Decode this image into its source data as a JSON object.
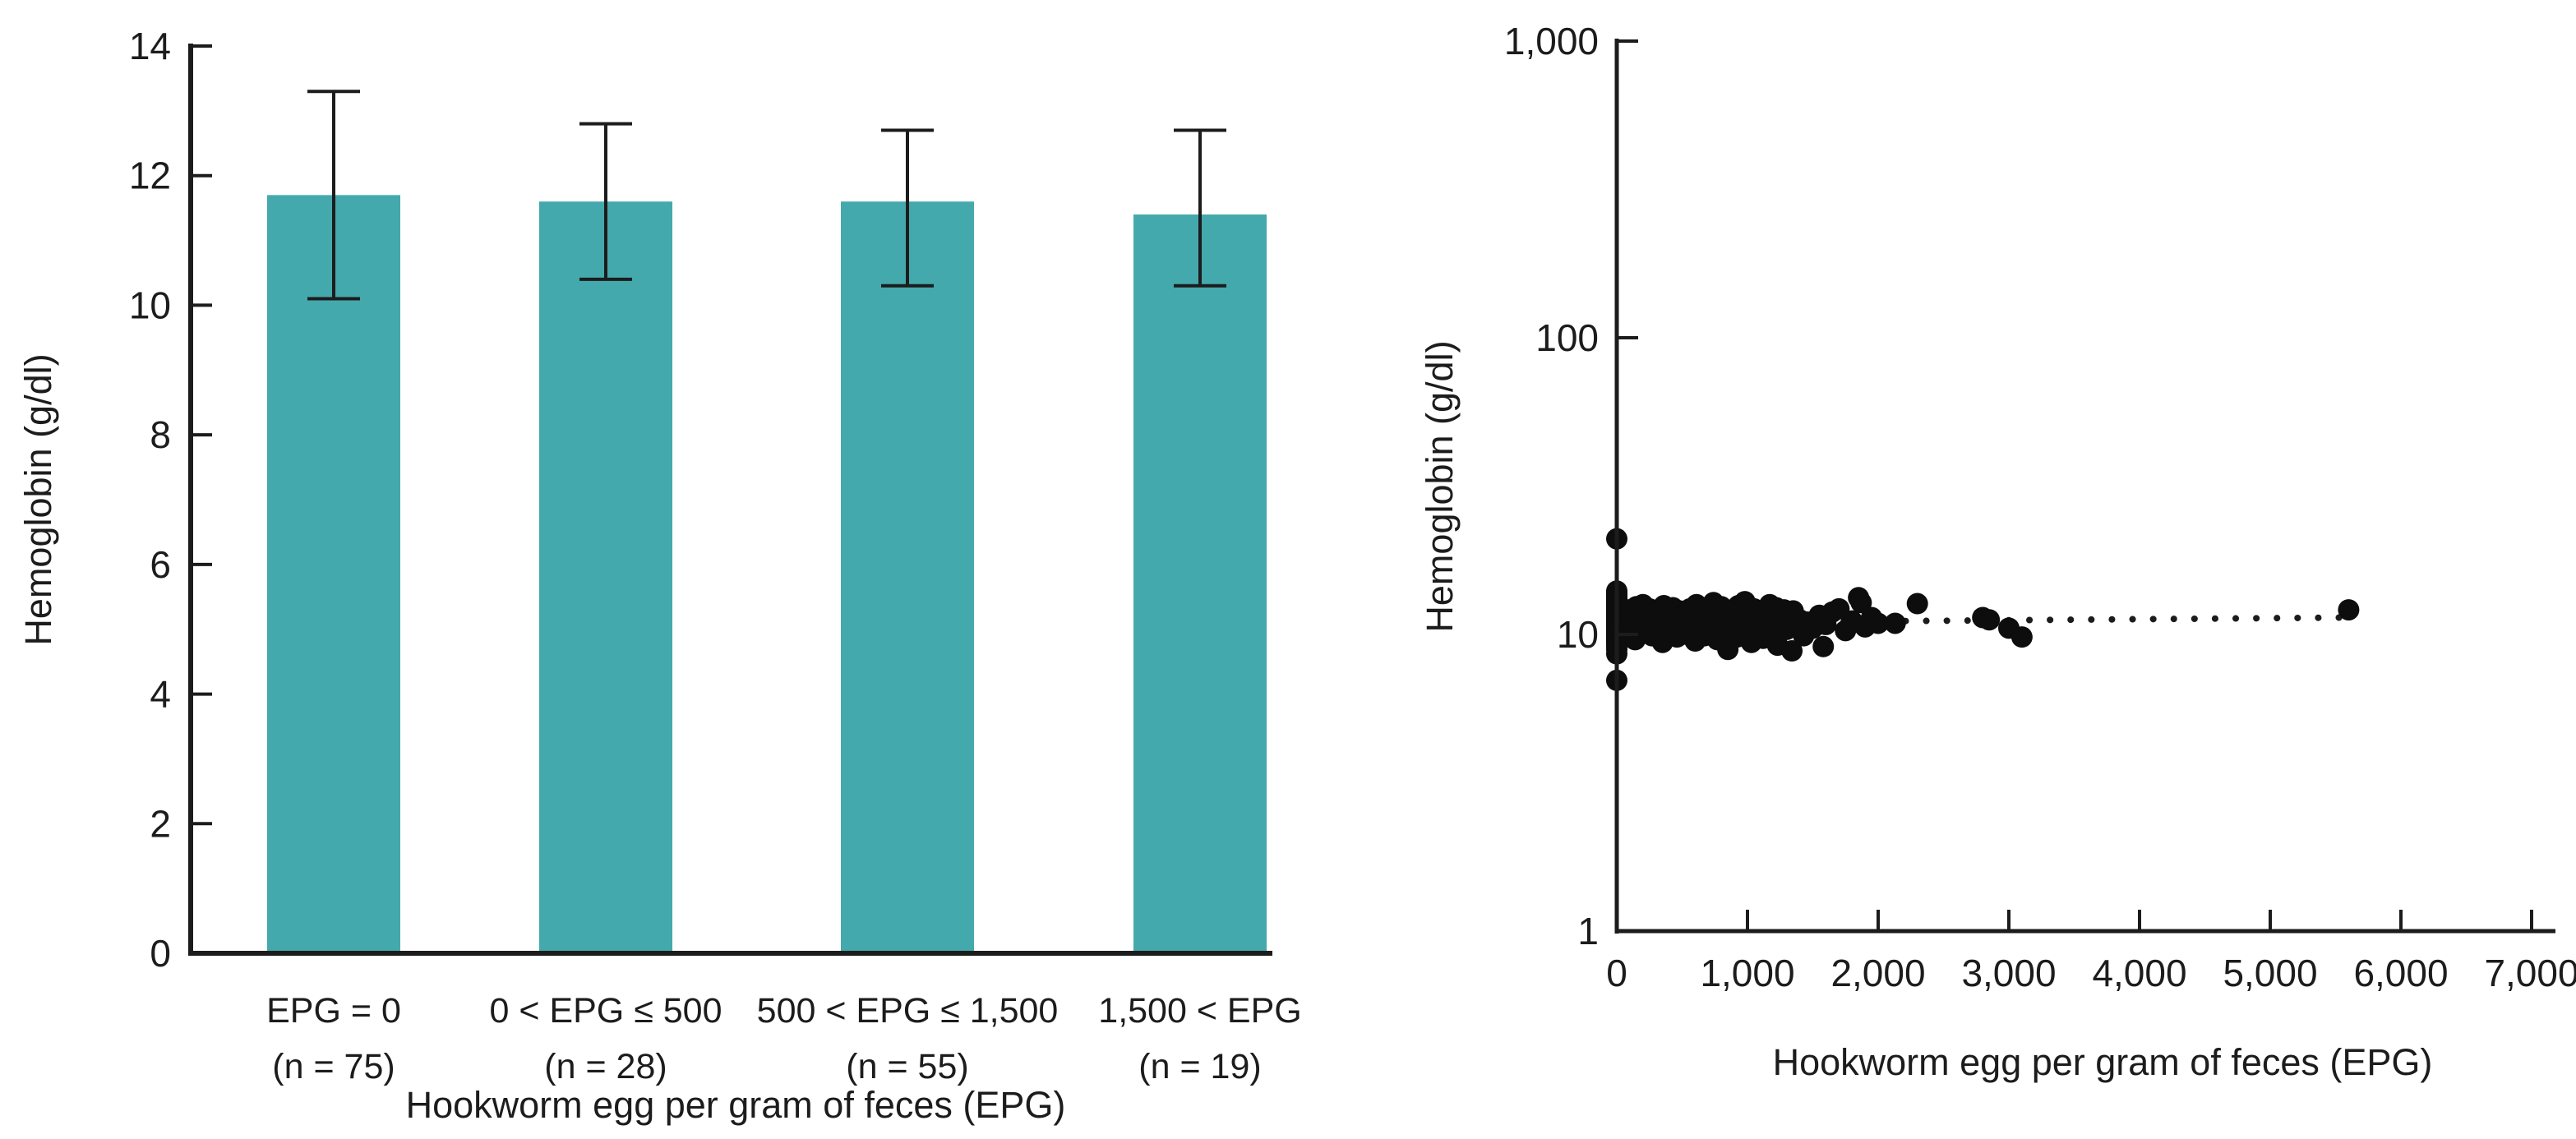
{
  "figure": {
    "background": "#ffffff",
    "ink_color": "#1c1c1c",
    "accent_color": "#44a9ad"
  },
  "chart_data": [
    {
      "id": "hemoglobin-by-epg-group",
      "type": "bar",
      "title": "",
      "xlabel": "Hookworm egg per gram of feces (EPG)",
      "ylabel": "Hemoglobin (g/dl)",
      "ylim": [
        0,
        14
      ],
      "yticks": [
        0,
        2,
        4,
        6,
        8,
        10,
        12,
        14
      ],
      "grid": false,
      "legend_position": "none",
      "bar_color": "#44a9ad",
      "categories": [
        "EPG = 0",
        "0 < EPG ≤ 500",
        "500 < EPG ≤ 1,500",
        "1,500 < EPG"
      ],
      "group_sizes": [
        "(n = 75)",
        "(n = 28)",
        "(n = 55)",
        "(n = 19)"
      ],
      "values": [
        11.7,
        11.6,
        11.6,
        11.4
      ],
      "error_low": [
        10.1,
        10.4,
        10.3,
        10.3
      ],
      "error_high": [
        13.3,
        12.8,
        12.7,
        12.7
      ]
    },
    {
      "id": "hemoglobin-vs-epg-scatter",
      "type": "scatter",
      "title": "",
      "xlabel": "Hookworm egg per gram of feces (EPG)",
      "ylabel": "Hemoglobin (g/dl)",
      "x_scale": "linear",
      "y_scale": "log",
      "xlim": [
        0,
        7250
      ],
      "ylim": [
        1,
        1000
      ],
      "xticks": [
        0,
        1000,
        2000,
        3000,
        4000,
        5000,
        6000,
        7000
      ],
      "xtick_labels": [
        "0",
        "1,000",
        "2,000",
        "3,000",
        "4,000",
        "5,000",
        "6,000",
        "7,000"
      ],
      "yticks": [
        1,
        10,
        100,
        1000
      ],
      "ytick_labels": [
        "1",
        "10",
        "100",
        "1,000"
      ],
      "grid": false,
      "legend_position": "none",
      "point_color": "#0d0d0d",
      "trend_line": {
        "style": "dotted",
        "x1": 0,
        "y1": 10.9,
        "x2": 5600,
        "y2": 11.4
      },
      "points": [
        [
          0,
          7.0
        ],
        [
          0,
          8.6
        ],
        [
          0,
          8.9
        ],
        [
          0,
          9.1
        ],
        [
          0,
          9.3
        ],
        [
          0,
          9.4
        ],
        [
          0,
          9.5
        ],
        [
          0,
          9.6
        ],
        [
          0,
          9.7
        ],
        [
          0,
          9.8
        ],
        [
          0,
          9.9
        ],
        [
          0,
          10.0
        ],
        [
          0,
          10.1
        ],
        [
          0,
          10.1
        ],
        [
          0,
          10.2
        ],
        [
          0,
          10.3
        ],
        [
          0,
          10.3
        ],
        [
          0,
          10.4
        ],
        [
          0,
          10.5
        ],
        [
          0,
          10.5
        ],
        [
          0,
          10.6
        ],
        [
          0,
          10.7
        ],
        [
          0,
          10.7
        ],
        [
          0,
          10.8
        ],
        [
          0,
          10.9
        ],
        [
          0,
          10.9
        ],
        [
          0,
          11.0
        ],
        [
          0,
          11.0
        ],
        [
          0,
          11.1
        ],
        [
          0,
          11.1
        ],
        [
          0,
          11.2
        ],
        [
          0,
          11.2
        ],
        [
          0,
          11.3
        ],
        [
          0,
          11.3
        ],
        [
          0,
          11.4
        ],
        [
          0,
          11.4
        ],
        [
          0,
          11.5
        ],
        [
          0,
          11.5
        ],
        [
          0,
          11.6
        ],
        [
          0,
          11.6
        ],
        [
          0,
          11.7
        ],
        [
          0,
          11.7
        ],
        [
          0,
          11.8
        ],
        [
          0,
          11.8
        ],
        [
          0,
          11.9
        ],
        [
          0,
          11.9
        ],
        [
          0,
          12.0
        ],
        [
          0,
          12.0
        ],
        [
          0,
          12.1
        ],
        [
          0,
          12.1
        ],
        [
          0,
          12.2
        ],
        [
          0,
          12.3
        ],
        [
          0,
          12.3
        ],
        [
          0,
          12.4
        ],
        [
          0,
          12.5
        ],
        [
          0,
          12.5
        ],
        [
          0,
          12.6
        ],
        [
          0,
          12.7
        ],
        [
          0,
          12.8
        ],
        [
          0,
          12.9
        ],
        [
          0,
          13.0
        ],
        [
          0,
          13.1
        ],
        [
          0,
          13.2
        ],
        [
          0,
          13.3
        ],
        [
          0,
          13.4
        ],
        [
          0,
          13.5
        ],
        [
          0,
          13.6
        ],
        [
          0,
          13.7
        ],
        [
          0,
          13.8
        ],
        [
          0,
          13.9
        ],
        [
          0,
          14.0
        ],
        [
          0,
          12.2
        ],
        [
          0,
          11.6
        ],
        [
          0,
          10.8
        ],
        [
          0,
          21.0
        ],
        [
          60,
          11.2
        ],
        [
          80,
          12.1
        ],
        [
          100,
          10.4
        ],
        [
          120,
          11.8
        ],
        [
          140,
          9.6
        ],
        [
          150,
          12.4
        ],
        [
          170,
          10.9
        ],
        [
          190,
          11.5
        ],
        [
          200,
          12.6
        ],
        [
          220,
          10.1
        ],
        [
          240,
          11.0
        ],
        [
          250,
          12.2
        ],
        [
          270,
          9.9
        ],
        [
          280,
          11.7
        ],
        [
          300,
          10.6
        ],
        [
          310,
          12.0
        ],
        [
          330,
          11.3
        ],
        [
          350,
          9.4
        ],
        [
          360,
          12.5
        ],
        [
          380,
          10.8
        ],
        [
          400,
          11.9
        ],
        [
          410,
          10.2
        ],
        [
          430,
          12.3
        ],
        [
          450,
          11.1
        ],
        [
          460,
          9.8
        ],
        [
          480,
          12.0
        ],
        [
          490,
          10.5
        ],
        [
          500,
          11.6
        ],
        [
          520,
          11.4
        ],
        [
          540,
          10.0
        ],
        [
          560,
          12.2
        ],
        [
          580,
          11.0
        ],
        [
          600,
          9.5
        ],
        [
          610,
          12.6
        ],
        [
          630,
          10.7
        ],
        [
          650,
          11.8
        ],
        [
          670,
          9.9
        ],
        [
          680,
          12.1
        ],
        [
          700,
          10.3
        ],
        [
          720,
          11.5
        ],
        [
          740,
          12.8
        ],
        [
          750,
          10.9
        ],
        [
          770,
          9.6
        ],
        [
          780,
          11.2
        ],
        [
          800,
          12.4
        ],
        [
          820,
          10.5
        ],
        [
          840,
          11.9
        ],
        [
          850,
          8.9
        ],
        [
          870,
          10.1
        ],
        [
          880,
          12.0
        ],
        [
          900,
          11.3
        ],
        [
          920,
          9.8
        ],
        [
          930,
          12.5
        ],
        [
          950,
          10.8
        ],
        [
          970,
          11.6
        ],
        [
          980,
          12.9
        ],
        [
          1000,
          10.2
        ],
        [
          1020,
          11.0
        ],
        [
          1030,
          9.4
        ],
        [
          1050,
          12.2
        ],
        [
          1070,
          10.6
        ],
        [
          1080,
          11.7
        ],
        [
          1100,
          12.0
        ],
        [
          1120,
          9.7
        ],
        [
          1130,
          10.9
        ],
        [
          1150,
          11.4
        ],
        [
          1170,
          12.6
        ],
        [
          1180,
          10.0
        ],
        [
          1200,
          11.1
        ],
        [
          1220,
          12.3
        ],
        [
          1230,
          9.2
        ],
        [
          1250,
          10.7
        ],
        [
          1270,
          11.8
        ],
        [
          1280,
          12.1
        ],
        [
          1300,
          10.4
        ],
        [
          1320,
          11.5
        ],
        [
          1340,
          8.8
        ],
        [
          1350,
          12.0
        ],
        [
          1380,
          10.8
        ],
        [
          1400,
          11.2
        ],
        [
          1430,
          9.9
        ],
        [
          1460,
          11.0
        ],
        [
          1500,
          10.5
        ],
        [
          1550,
          11.6
        ],
        [
          1580,
          9.1
        ],
        [
          1600,
          10.8
        ],
        [
          1650,
          11.9
        ],
        [
          1700,
          12.2
        ],
        [
          1750,
          10.3
        ],
        [
          1800,
          11.1
        ],
        [
          1850,
          13.3
        ],
        [
          1870,
          12.8
        ],
        [
          1900,
          10.6
        ],
        [
          1950,
          11.4
        ],
        [
          2000,
          10.9
        ],
        [
          2130,
          10.9
        ],
        [
          2300,
          12.7
        ],
        [
          2800,
          11.4
        ],
        [
          2850,
          11.2
        ],
        [
          3000,
          10.5
        ],
        [
          3100,
          9.8
        ],
        [
          5600,
          12.1
        ]
      ]
    }
  ]
}
